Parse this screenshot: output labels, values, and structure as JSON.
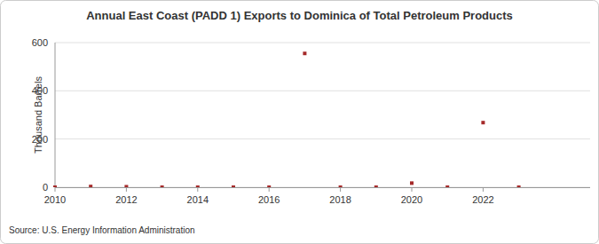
{
  "chart_data": {
    "type": "scatter",
    "title": "Annual East Coast (PADD 1) Exports to Dominica of Total Petroleum Products",
    "y_label": "Thousand Barrels",
    "source": "Source: U.S. Energy Information Administration",
    "x": [
      2010,
      2011,
      2012,
      2013,
      2014,
      2015,
      2016,
      2017,
      2018,
      2019,
      2020,
      2021,
      2022,
      2023
    ],
    "values": [
      0,
      3,
      2,
      0,
      0,
      0,
      0,
      555,
      0,
      0,
      17,
      0,
      268,
      0
    ],
    "color": "#a52a2a",
    "marker": "square",
    "xlim": [
      2010,
      2025
    ],
    "xticks": [
      2010,
      2012,
      2014,
      2016,
      2018,
      2020,
      2022
    ],
    "ylim": [
      0,
      600
    ],
    "yticks": [
      0,
      200,
      400,
      600
    ],
    "grid": true
  }
}
